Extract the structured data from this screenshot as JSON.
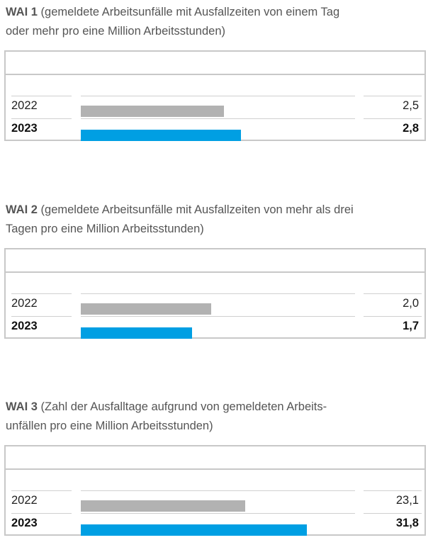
{
  "colors": {
    "prev": "#b2b2b2",
    "curr": "#009fe3"
  },
  "chart_data": [
    {
      "type": "bar",
      "label": "WAI 1",
      "lines": [
        "(gemeldete Arbeitsunfälle mit Ausfallzeiten von einem Tag",
        "oder mehr pro eine Million Arbeitsstunden)"
      ],
      "categories": [
        "2022",
        "2023"
      ],
      "values": [
        2.5,
        2.8
      ],
      "value_labels": [
        "2,5",
        "2,8"
      ],
      "xlim": [
        0,
        4.8
      ]
    },
    {
      "type": "bar",
      "label": "WAI 2",
      "lines": [
        "(gemeldete Arbeitsunfälle mit Ausfallzeiten von mehr als drei",
        "Tagen pro eine Million Arbeitsstunden)"
      ],
      "categories": [
        "2022",
        "2023"
      ],
      "values": [
        2.0,
        1.7
      ],
      "value_labels": [
        "2,0",
        "1,7"
      ],
      "xlim": [
        0,
        4.2
      ]
    },
    {
      "type": "bar",
      "label": "WAI 3",
      "lines": [
        "(Zahl der Ausfalltage aufgrund von gemeldeten Arbeits-",
        "unfällen pro eine Million Arbeitsstunden)"
      ],
      "categories": [
        "2022",
        "2023"
      ],
      "values": [
        23.1,
        31.8
      ],
      "value_labels": [
        "23,1",
        "31,8"
      ],
      "xlim": [
        0,
        38.6
      ]
    }
  ]
}
